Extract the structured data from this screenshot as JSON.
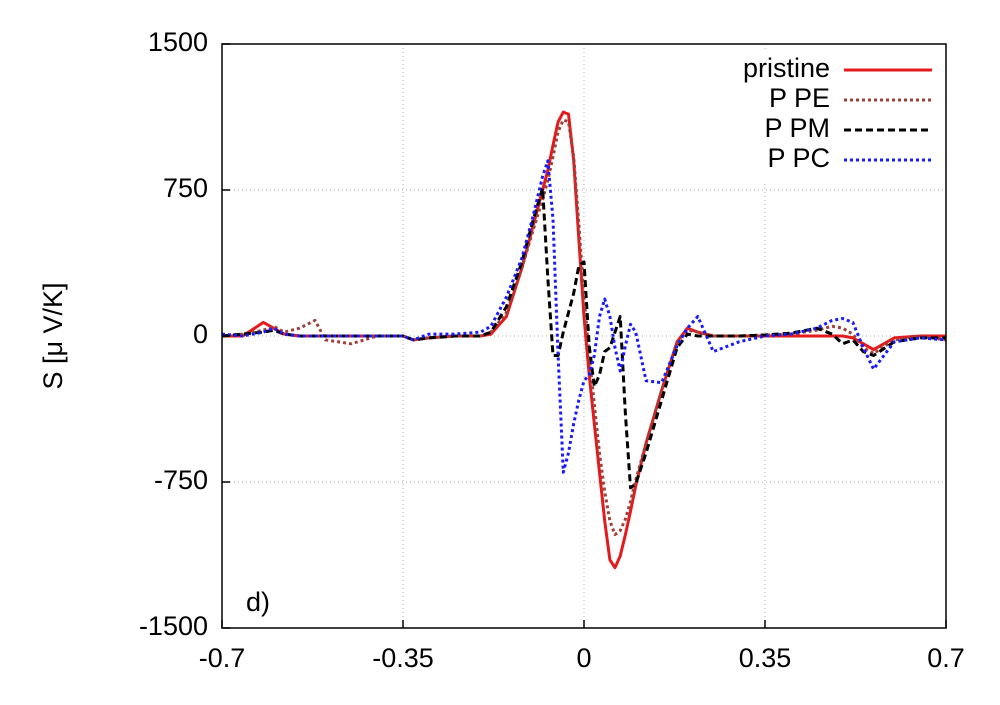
{
  "chart_data": {
    "type": "line",
    "ylabel": "S [μ V/K]",
    "annotation": "d)",
    "grid": true,
    "legend": "upper right",
    "xlim": [
      -0.7,
      0.7
    ],
    "xticks": [
      -0.7,
      -0.35,
      0,
      0.35,
      0.7
    ],
    "ylim": [
      -1500,
      1500
    ],
    "yticks": [
      -1500,
      -750,
      0,
      750,
      1500
    ],
    "x": [
      -0.7,
      -0.66,
      -0.62,
      -0.6,
      -0.58,
      -0.55,
      -0.52,
      -0.5,
      -0.45,
      -0.4,
      -0.35,
      -0.33,
      -0.3,
      -0.25,
      -0.2,
      -0.18,
      -0.15,
      -0.12,
      -0.1,
      -0.08,
      -0.07,
      -0.06,
      -0.05,
      -0.04,
      -0.03,
      -0.02,
      -0.01,
      0,
      0.01,
      0.02,
      0.03,
      0.04,
      0.05,
      0.06,
      0.07,
      0.08,
      0.09,
      0.1,
      0.12,
      0.15,
      0.18,
      0.2,
      0.22,
      0.25,
      0.3,
      0.35,
      0.4,
      0.45,
      0.48,
      0.5,
      0.52,
      0.54,
      0.56,
      0.6,
      0.65,
      0.7
    ],
    "series": [
      {
        "name": "pristine",
        "color": "#e41a1c",
        "dash": "solid",
        "values": [
          0,
          0,
          70,
          40,
          10,
          0,
          0,
          0,
          0,
          0,
          0,
          -20,
          -10,
          0,
          0,
          10,
          100,
          350,
          550,
          750,
          850,
          980,
          1100,
          1150,
          1140,
          900,
          500,
          100,
          -200,
          -450,
          -700,
          -950,
          -1150,
          -1190,
          -1130,
          -1020,
          -900,
          -770,
          -550,
          -280,
          -30,
          40,
          20,
          0,
          0,
          0,
          0,
          0,
          0,
          0,
          -10,
          -40,
          -70,
          -10,
          0,
          0
        ]
      },
      {
        "name": "P PE",
        "color": "#a0403a",
        "dash": "dotted",
        "values": [
          0,
          10,
          30,
          50,
          20,
          40,
          80,
          -20,
          -40,
          0,
          0,
          -20,
          -10,
          0,
          0,
          20,
          120,
          350,
          530,
          700,
          800,
          920,
          1050,
          1110,
          1100,
          920,
          580,
          200,
          -100,
          -350,
          -600,
          -800,
          -950,
          -1020,
          -1000,
          -940,
          -850,
          -740,
          -550,
          -280,
          -30,
          30,
          20,
          0,
          0,
          5,
          10,
          30,
          50,
          40,
          10,
          -60,
          -90,
          -20,
          0,
          -20
        ]
      },
      {
        "name": "P PM",
        "color": "#000000",
        "dash": "dashed",
        "values": [
          0,
          10,
          20,
          30,
          10,
          0,
          0,
          0,
          0,
          0,
          0,
          -20,
          -10,
          0,
          0,
          20,
          150,
          380,
          580,
          760,
          300,
          -100,
          -100,
          20,
          120,
          220,
          360,
          380,
          -50,
          -260,
          -200,
          -80,
          -60,
          20,
          100,
          -400,
          -780,
          -760,
          -600,
          -330,
          -60,
          10,
          0,
          0,
          0,
          5,
          15,
          40,
          10,
          -40,
          -20,
          -80,
          -100,
          -30,
          -10,
          -10
        ]
      },
      {
        "name": "P PC",
        "color": "#1a1aff",
        "dash": "dotted",
        "values": [
          10,
          0,
          20,
          40,
          10,
          0,
          0,
          0,
          0,
          0,
          0,
          -20,
          10,
          10,
          20,
          50,
          200,
          400,
          600,
          820,
          900,
          600,
          -100,
          -700,
          -600,
          -450,
          -330,
          -230,
          -200,
          -100,
          100,
          190,
          100,
          -60,
          -180,
          -50,
          60,
          20,
          -230,
          -240,
          -50,
          40,
          100,
          -80,
          -30,
          0,
          10,
          40,
          80,
          90,
          70,
          -60,
          -170,
          -30,
          -10,
          -20
        ]
      }
    ]
  }
}
